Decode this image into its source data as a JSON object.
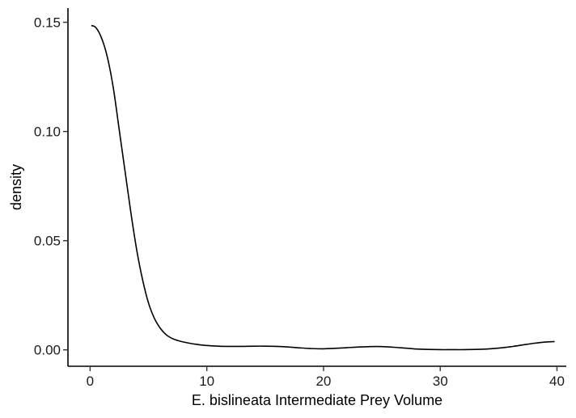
{
  "chart_data": {
    "type": "area",
    "title": "",
    "xlabel": "E. bislineata Intermediate Prey Volume",
    "ylabel": "density",
    "xlim": [
      -1.9,
      40.8
    ],
    "ylim": [
      -0.0075,
      0.1565
    ],
    "xticks": [
      0,
      10,
      20,
      30,
      40
    ],
    "xtick_labels": [
      "0",
      "10",
      "20",
      "30",
      "40"
    ],
    "yticks": [
      0.0,
      0.05,
      0.1,
      0.15
    ],
    "ytick_labels": [
      "0.00",
      "0.05",
      "0.10",
      "0.15"
    ],
    "grid": false,
    "legend": "none",
    "line_color": "#000000",
    "series": [
      {
        "x": [
          0.1,
          0.5,
          1.0,
          1.5,
          2.0,
          2.5,
          3.0,
          3.5,
          4.0,
          4.5,
          5.0,
          5.5,
          6.0,
          6.5,
          7.0,
          7.5,
          8.0,
          9.0,
          10.0,
          11.0,
          12.0,
          13.0,
          14.0,
          15.0,
          16.0,
          17.0,
          18.0,
          19.0,
          20.0,
          21.0,
          22.0,
          23.0,
          24.0,
          25.0,
          26.0,
          27.0,
          28.0,
          29.0,
          30.0,
          31.0,
          32.0,
          33.0,
          34.0,
          35.0,
          36.0,
          37.0,
          38.0,
          39.0,
          39.8
        ],
        "y": [
          0.1485,
          0.1475,
          0.1425,
          0.1335,
          0.1195,
          0.1005,
          0.0815,
          0.0625,
          0.0455,
          0.032,
          0.0215,
          0.0145,
          0.01,
          0.007,
          0.0053,
          0.0043,
          0.0036,
          0.0026,
          0.002,
          0.0017,
          0.0016,
          0.0016,
          0.0017,
          0.0017,
          0.0016,
          0.0013,
          0.0009,
          0.0006,
          0.0005,
          0.0007,
          0.001,
          0.0013,
          0.0015,
          0.0015,
          0.0012,
          0.0008,
          0.0004,
          0.0002,
          0.0001,
          0.0001,
          0.0001,
          0.0002,
          0.0004,
          0.0008,
          0.0014,
          0.0022,
          0.003,
          0.0036,
          0.0038
        ]
      }
    ]
  }
}
